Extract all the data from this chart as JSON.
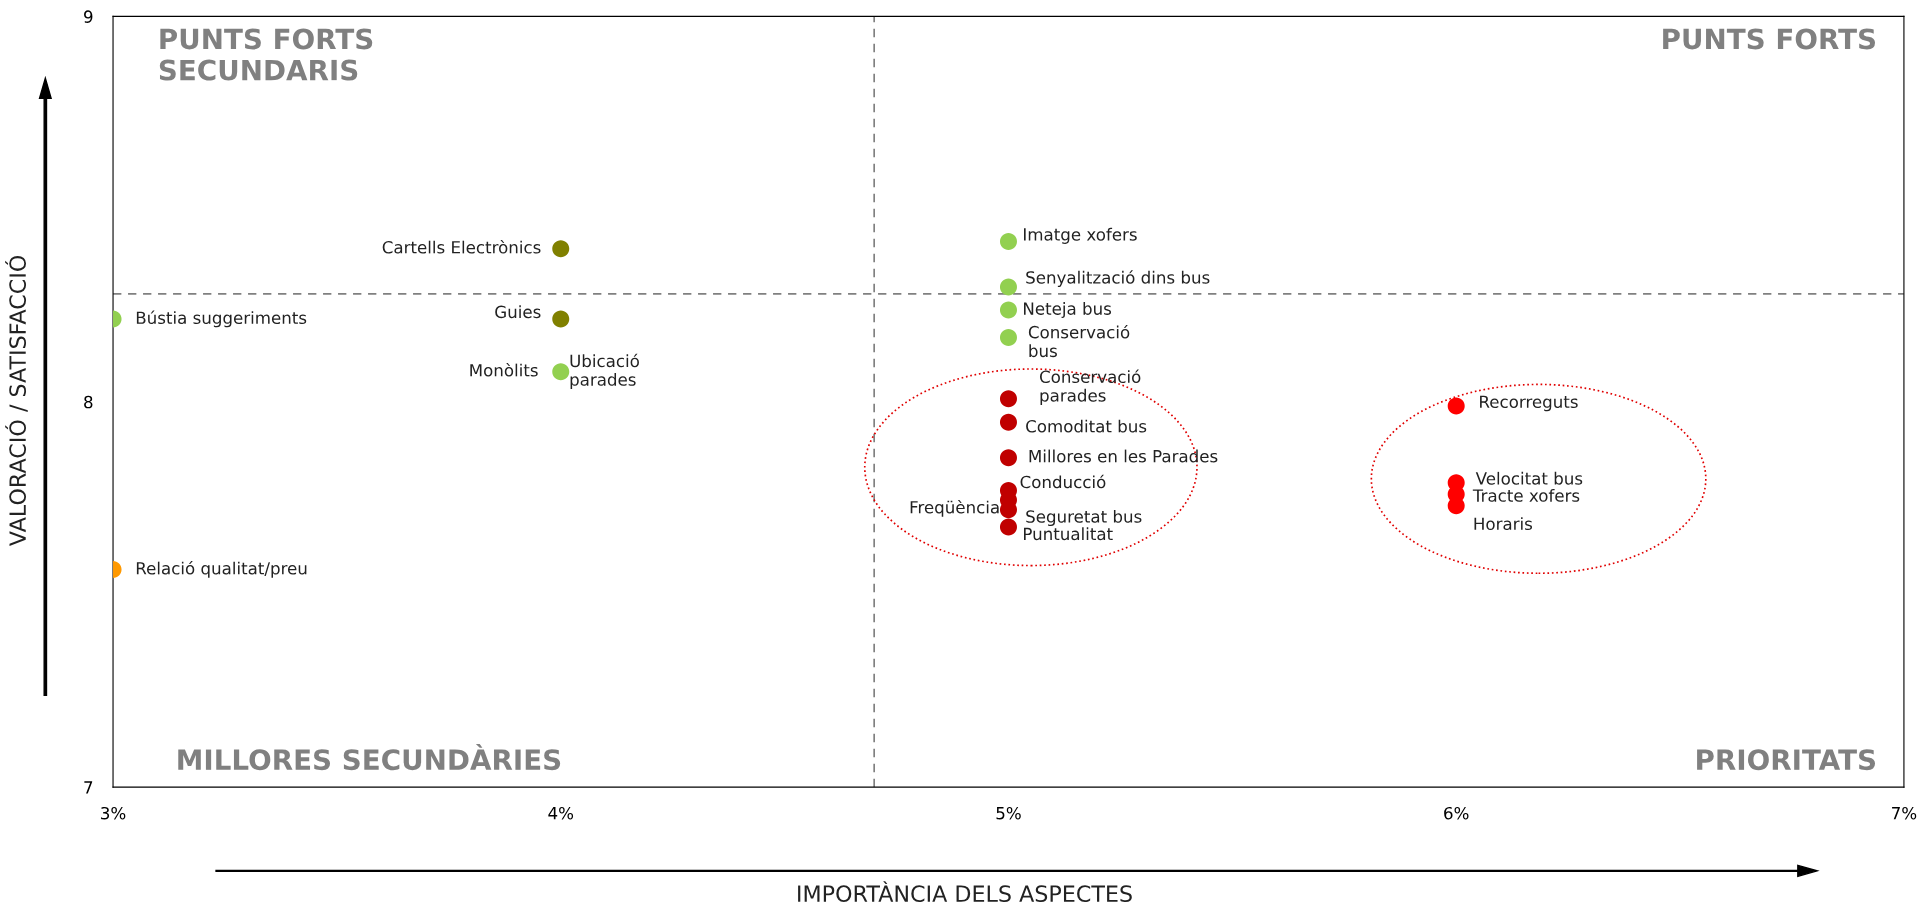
{
  "chart_data": {
    "type": "scatter",
    "xlabel": "IMPORTÀNCIA DELS ASPECTES",
    "ylabel": "VALORACIÓ / SATISFACCIÓ",
    "xlim": [
      3,
      7
    ],
    "ylim": [
      7,
      9
    ],
    "xticks": [
      {
        "value": 3,
        "label": "3%"
      },
      {
        "value": 4,
        "label": "4%"
      },
      {
        "value": 5,
        "label": "5%"
      },
      {
        "value": 6,
        "label": "6%"
      },
      {
        "value": 7,
        "label": "7%"
      }
    ],
    "yticks": [
      7,
      8,
      9
    ],
    "grid": false,
    "legend": false,
    "marker": "circle",
    "series": [
      {
        "color": "#92d050",
        "x": [
          3,
          4,
          5,
          5,
          5,
          5
        ],
        "values": [
          8.215,
          8.078,
          8.416,
          8.298,
          8.238,
          8.167
        ]
      },
      {
        "color": "#ff9900",
        "x": [
          3
        ],
        "values": [
          7.565
        ]
      },
      {
        "color": "#808000",
        "x": [
          4,
          4
        ],
        "values": [
          8.397,
          8.215
        ]
      },
      {
        "color": "#c00000",
        "x": [
          5,
          5,
          5,
          5,
          5,
          5,
          5
        ],
        "values": [
          8.008,
          7.947,
          7.855,
          7.77,
          7.745,
          7.72,
          7.675
        ]
      },
      {
        "color": "#ff0000",
        "x": [
          6,
          6,
          6,
          6
        ],
        "values": [
          7.989,
          7.79,
          7.76,
          7.73
        ]
      }
    ],
    "ref_lines": [
      {
        "axis": "x",
        "value": 4.7,
        "color": "#808080",
        "line_style": "dashed"
      },
      {
        "axis": "y",
        "value": 8.28,
        "color": "#808080",
        "line_style": "dashed"
      }
    ],
    "annotations": [
      "PUNTS FORTS\nSECUNDARIS",
      "PUNTS FORTS",
      "MILLORES SECUNDÀRIES",
      "PRIORITATS",
      {
        "text": "Bústia suggeriments",
        "x": 3,
        "y": 8.215
      },
      {
        "text": "Relació qualitat/preu",
        "x": 3,
        "y": 7.565
      },
      {
        "text": "Cartells Electrònics",
        "x": 4,
        "y": 8.397
      },
      {
        "text": "Guies",
        "x": 4,
        "y": 8.215
      },
      {
        "text": "Monòlits",
        "x": 4,
        "y": 8.078
      },
      {
        "text": "Ubicació\nparades",
        "x": 4,
        "y": 8.078
      },
      {
        "text": "Imatge xofers",
        "x": 5,
        "y": 8.416
      },
      {
        "text": "Senyalització dins bus",
        "x": 5,
        "y": 8.298
      },
      {
        "text": "Neteja bus",
        "x": 5,
        "y": 8.238
      },
      {
        "text": "Conservació\nbus",
        "x": 5,
        "y": 8.167
      },
      {
        "text": "Conservació\nparades",
        "x": 5,
        "y": 8.008
      },
      {
        "text": "Comoditat bus",
        "x": 5,
        "y": 7.947
      },
      {
        "text": "Millores en les Parades",
        "x": 5,
        "y": 7.855
      },
      {
        "text": "Conducció",
        "x": 5,
        "y": 7.77
      },
      {
        "text": "Freqüència",
        "x": 5,
        "y": 7.745
      },
      {
        "text": "Seguretat bus",
        "x": 5,
        "y": 7.72
      },
      {
        "text": "Puntualitat",
        "x": 5,
        "y": 7.675
      },
      {
        "text": "Recorreguts",
        "x": 6,
        "y": 7.989
      },
      {
        "text": "Velocitat bus",
        "x": 6,
        "y": 7.79
      },
      {
        "text": "Tracte xofers",
        "x": 6,
        "y": 7.76
      },
      {
        "text": "Horaris",
        "x": 6,
        "y": 7.73
      }
    ]
  }
}
